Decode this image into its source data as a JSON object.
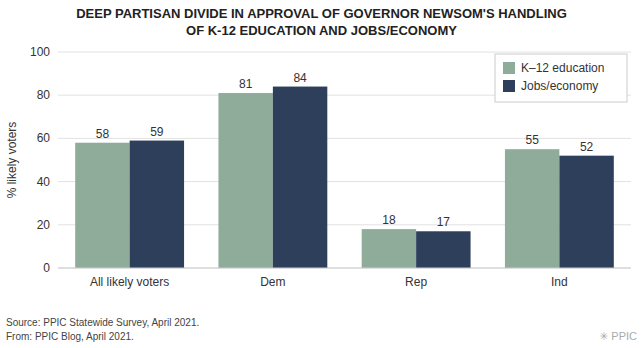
{
  "chart_data": {
    "type": "bar",
    "title": "DEEP PARTISAN DIVIDE IN APPROVAL OF GOVERNOR NEWSOM'S HANDLING\nOF K-12 EDUCATION AND JOBS/ECONOMY",
    "categories": [
      "All likely voters",
      "Dem",
      "Rep",
      "Ind"
    ],
    "series": [
      {
        "name": "K–12 education",
        "color": "#8fac9a",
        "values": [
          58,
          81,
          18,
          55
        ]
      },
      {
        "name": "Jobs/economy",
        "color": "#2e3f5c",
        "values": [
          59,
          84,
          17,
          52
        ]
      }
    ],
    "ylabel": "% likely voters",
    "ylim": [
      0,
      100
    ],
    "yticks": [
      0,
      20,
      40,
      60,
      80,
      100
    ],
    "grid": true,
    "legend": "upper right",
    "data_labels": true,
    "annotations": [
      "Source: PPIC Statewide Survey, April 2021.\nFrom: PPIC Blog, April 2021.",
      "✳ PPIC"
    ]
  }
}
